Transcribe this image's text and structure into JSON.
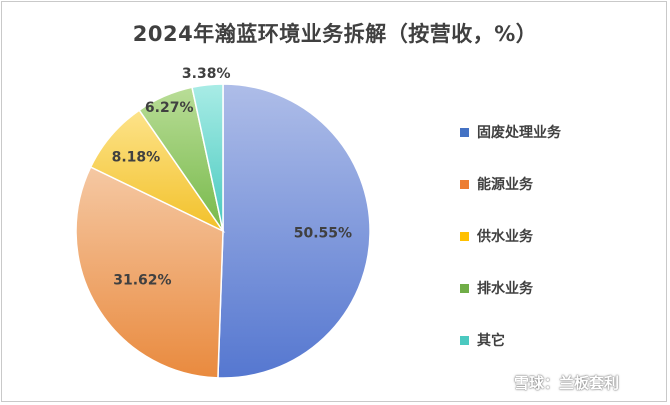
{
  "chart_data": {
    "type": "pie",
    "title": "2024年瀚蓝环境业务拆解（按营收，%）",
    "categories": [
      "固废处理业务",
      "能源业务",
      "供水业务",
      "排水业务",
      "其它"
    ],
    "values": [
      50.55,
      31.62,
      8.18,
      6.27,
      3.38
    ],
    "labels": [
      "50.55%",
      "31.62%",
      "8.18%",
      "6.27%",
      "3.38%"
    ],
    "legend_position": "right",
    "colors": [
      [
        "#aebde8",
        "#5577d0"
      ],
      [
        "#f5c8a3",
        "#e98a3e"
      ],
      [
        "#fde38a",
        "#f2c12a"
      ],
      [
        "#b9dd97",
        "#77b94a"
      ],
      [
        "#a9ece6",
        "#47c9be"
      ]
    ],
    "legend_colors": [
      "#4472c4",
      "#ed7d31",
      "#ffc000",
      "#70ad47",
      "#4bc9c0"
    ]
  },
  "watermark": {
    "text": "雪球：兰板套利"
  }
}
